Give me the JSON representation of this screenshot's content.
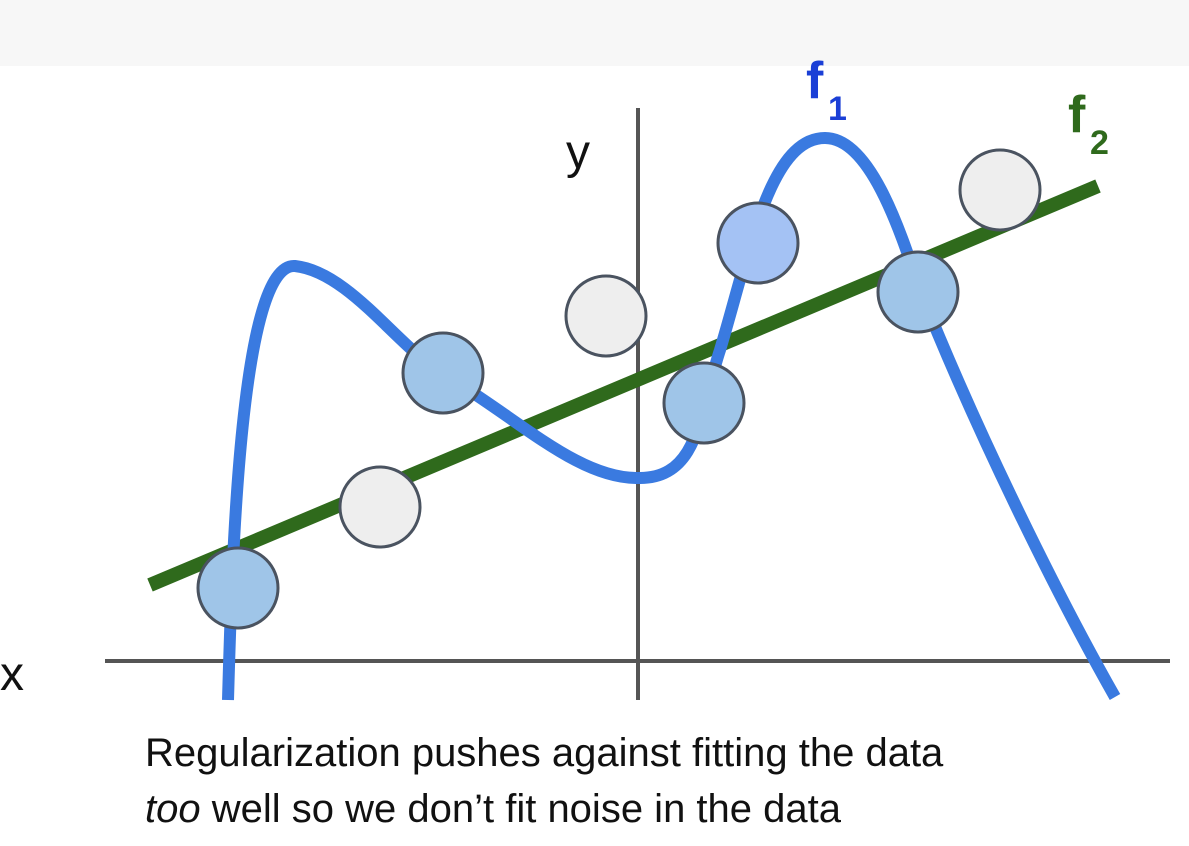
{
  "axes": {
    "x_label": "x",
    "y_label": "y"
  },
  "curves": [
    {
      "label": "f",
      "subscript": "1"
    },
    {
      "label": "f",
      "subscript": "2"
    }
  ],
  "caption": {
    "line1": "Regularization pushes against fitting the data",
    "line2_emphasis": "too",
    "line2_rest": "well so we don’t fit noise in the data"
  }
}
